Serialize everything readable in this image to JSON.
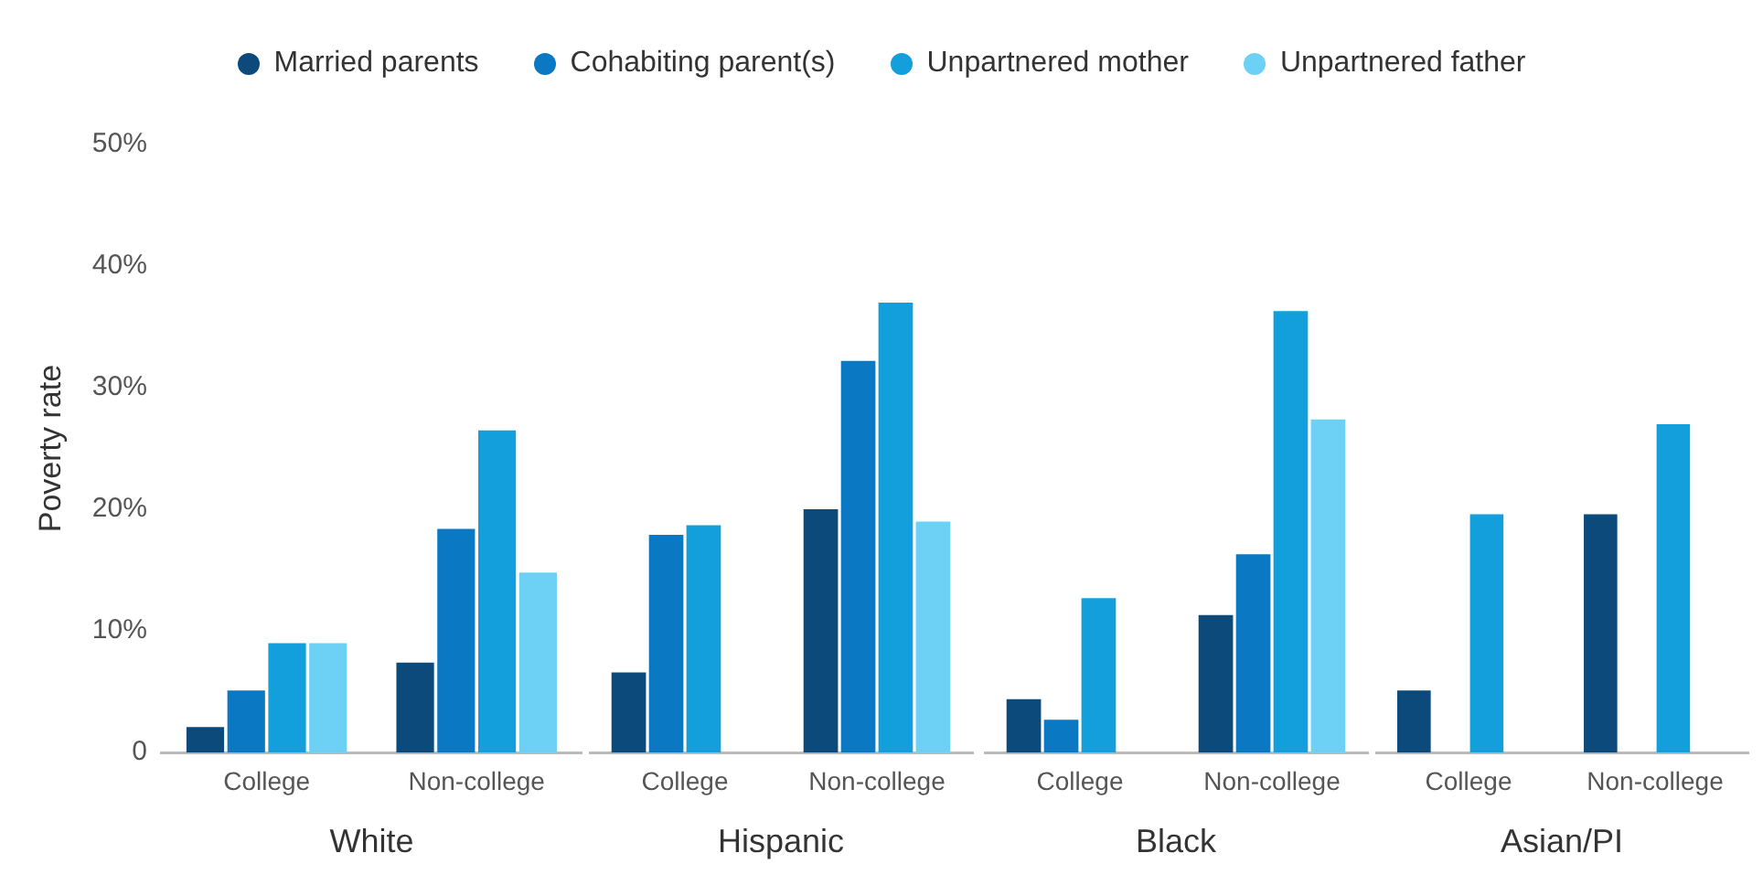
{
  "chart_data": [
    {
      "type": "bar",
      "xlabel": "White",
      "ylabel": "Poverty rate",
      "categories": [
        "College",
        "Non-college"
      ],
      "legend": "top",
      "grid": false,
      "ylim": [
        0,
        50
      ],
      "yticks": [
        {
          "value": 0,
          "label": "0"
        },
        {
          "value": 10,
          "label": "10%"
        },
        {
          "value": 20,
          "label": "20%"
        },
        {
          "value": 30,
          "label": "30%"
        },
        {
          "value": 40,
          "label": "40%"
        },
        {
          "value": 50,
          "label": "50%"
        }
      ],
      "series": [
        {
          "name": "Married parents",
          "color": "#0b4a7a",
          "values": [
            2.1,
            7.4
          ]
        },
        {
          "name": "Cohabiting parent(s)",
          "color": "#0a78c2",
          "values": [
            5.1,
            18.4
          ]
        },
        {
          "name": "Unpartnered mother",
          "color": "#139fdc",
          "values": [
            9.0,
            26.5
          ]
        },
        {
          "name": "Unpartnered father",
          "color": "#6dd0f5",
          "values": [
            9.0,
            14.8
          ]
        }
      ]
    },
    {
      "type": "bar",
      "xlabel": "Hispanic",
      "categories": [
        "College",
        "Non-college"
      ],
      "grid": false,
      "tick_labels": "x",
      "ylim": [
        0,
        50
      ],
      "series": [
        {
          "color": "#0b4a7a",
          "values": [
            6.6,
            20.0
          ]
        },
        {
          "color": "#0a78c2",
          "values": [
            17.9,
            32.2
          ]
        },
        {
          "color": "#139fdc",
          "values": [
            18.7,
            37.0
          ]
        },
        {
          "color": "#6dd0f5",
          "values": [
            null,
            19.0
          ]
        }
      ]
    },
    {
      "type": "bar",
      "xlabel": "Black",
      "categories": [
        "College",
        "Non-college"
      ],
      "grid": false,
      "tick_labels": "x",
      "ylim": [
        0,
        50
      ],
      "series": [
        {
          "color": "#0b4a7a",
          "values": [
            4.4,
            11.3
          ]
        },
        {
          "color": "#0a78c2",
          "values": [
            2.7,
            16.3
          ]
        },
        {
          "color": "#139fdc",
          "values": [
            12.7,
            36.3
          ]
        },
        {
          "color": "#6dd0f5",
          "values": [
            null,
            27.4
          ]
        }
      ]
    },
    {
      "type": "bar",
      "xlabel": "Asian/PI",
      "categories": [
        "College",
        "Non-college"
      ],
      "grid": false,
      "tick_labels": "x",
      "ylim": [
        0,
        50
      ],
      "series": [
        {
          "color": "#0b4a7a",
          "values": [
            5.1,
            19.6
          ]
        },
        {
          "color": "#0a78c2",
          "values": [
            null,
            null
          ]
        },
        {
          "color": "#139fdc",
          "values": [
            19.6,
            27.0
          ]
        },
        {
          "color": "#6dd0f5",
          "values": [
            null,
            null
          ]
        }
      ]
    }
  ]
}
